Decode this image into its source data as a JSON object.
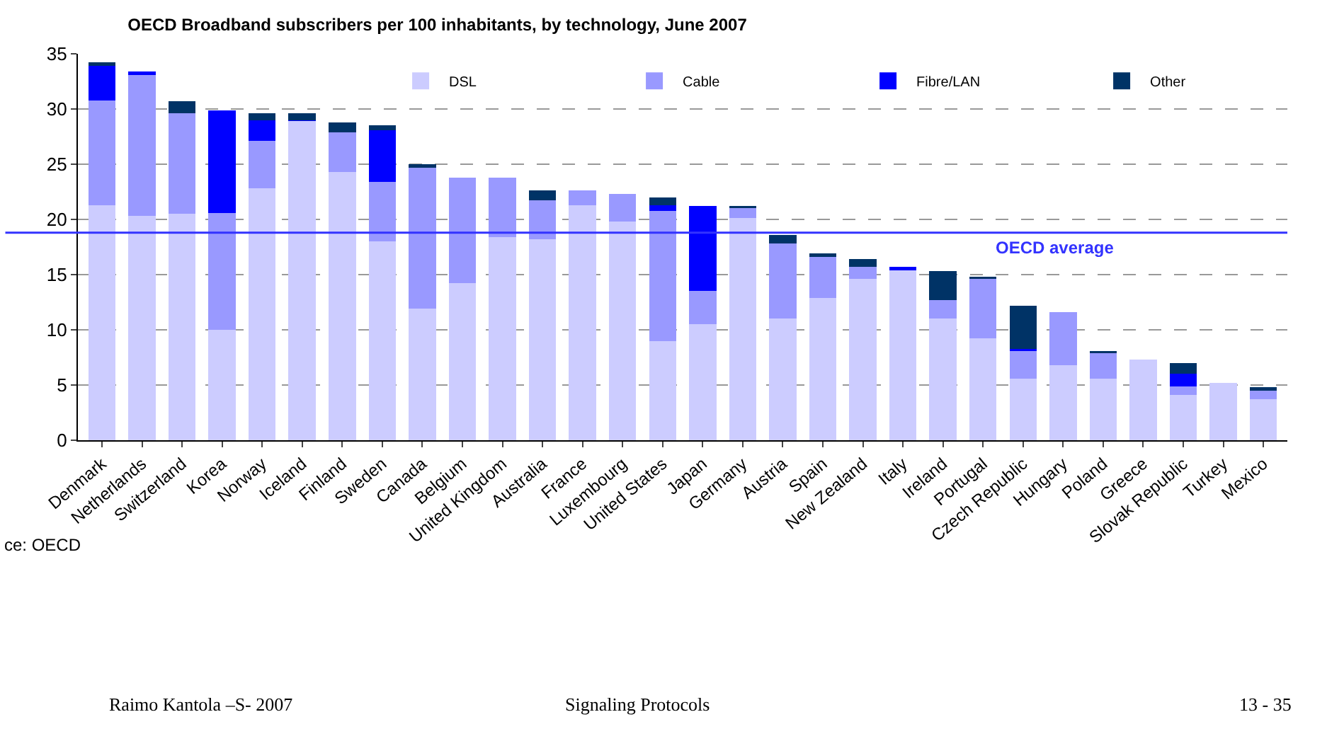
{
  "chart_data": {
    "type": "bar",
    "title": "OECD Broadband subscribers per 100 inhabitants, by technology, June 2007",
    "categories": [
      "Denmark",
      "Netherlands",
      "Switzerland",
      "Korea",
      "Norway",
      "Iceland",
      "Finland",
      "Sweden",
      "Canada",
      "Belgium",
      "United Kingdom",
      "Australia",
      "France",
      "Luxembourg",
      "United States",
      "Japan",
      "Germany",
      "Austria",
      "Spain",
      "New Zealand",
      "Italy",
      "Ireland",
      "Portugal",
      "Czech Republic",
      "Hungary",
      "Poland",
      "Greece",
      "Slovak Republic",
      "Turkey",
      "Mexico"
    ],
    "series": [
      {
        "name": "DSL",
        "color": "#ccccff",
        "values": [
          21.3,
          20.3,
          20.5,
          10.0,
          22.8,
          28.9,
          24.3,
          18.0,
          11.9,
          14.2,
          18.4,
          18.2,
          21.3,
          19.8,
          9.0,
          10.5,
          20.1,
          11.0,
          12.9,
          14.6,
          15.4,
          11.0,
          9.2,
          5.6,
          6.8,
          5.6,
          7.3,
          4.1,
          5.2,
          3.7
        ]
      },
      {
        "name": "Cable",
        "color": "#9999ff",
        "values": [
          9.5,
          12.8,
          9.1,
          10.6,
          4.3,
          0,
          3.6,
          5.4,
          12.8,
          9.6,
          5.4,
          3.5,
          1.3,
          2.5,
          11.8,
          3.0,
          0.9,
          6.8,
          3.7,
          1.1,
          0,
          1.7,
          5.4,
          2.5,
          4.8,
          2.3,
          0,
          0.8,
          0,
          0.8
        ]
      },
      {
        "name": "Fibre/LAN",
        "color": "#0000ff",
        "values": [
          3.1,
          0.3,
          0,
          9.3,
          1.9,
          0.1,
          0,
          4.7,
          0,
          0,
          0,
          0,
          0,
          0,
          0.5,
          7.7,
          0,
          0,
          0,
          0,
          0.3,
          0,
          0,
          0.2,
          0,
          0,
          0,
          1.1,
          0,
          0
        ]
      },
      {
        "name": "Other",
        "color": "#003366",
        "values": [
          0.3,
          0,
          1.1,
          0,
          0.6,
          0.6,
          0.9,
          0.4,
          0.3,
          0,
          0,
          0.9,
          0,
          0,
          0.7,
          0,
          0.2,
          0.8,
          0.3,
          0.7,
          0,
          2.6,
          0.2,
          3.9,
          0,
          0.2,
          0,
          1.0,
          0,
          0.3
        ]
      }
    ],
    "stacked": true,
    "ylim": [
      0,
      35
    ],
    "yticks": [
      0,
      5,
      10,
      15,
      20,
      25,
      30,
      35
    ],
    "grid": "y",
    "legend": "top",
    "ref_lines": [
      {
        "axis": "y",
        "value": 18.8,
        "label": "OECD average",
        "color": "#3333ff"
      }
    ],
    "annotations": [
      "ce: OECD",
      "Raimo Kantola –S- 2007",
      "Signaling Protocols",
      "13 - 35"
    ]
  }
}
